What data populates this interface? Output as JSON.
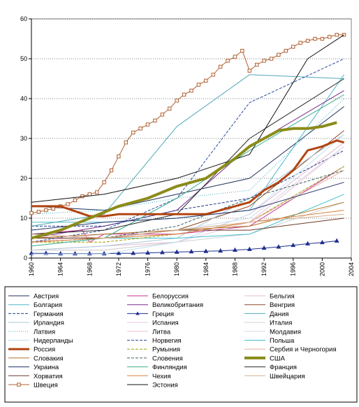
{
  "chart_data": {
    "type": "line",
    "title": "",
    "xlabel": "",
    "ylabel": "",
    "xlim": [
      1960,
      2004
    ],
    "ylim": [
      0,
      60
    ],
    "x_ticks": [
      "1960",
      "1964",
      "1968",
      "1972",
      "1976",
      "1980",
      "1984",
      "1988",
      "1992",
      "1996",
      "2000",
      "2004"
    ],
    "y_ticks": [
      "0",
      "10",
      "20",
      "30",
      "40",
      "50",
      "60"
    ],
    "grid": "horizontal",
    "legend_position": "bottom",
    "series": [
      {
        "name": "Австрия",
        "color": "#1f2f5a",
        "style": "solid",
        "width": 1,
        "x": [
          1960,
          1970,
          1980,
          1990,
          2003
        ],
        "y": [
          13,
          12,
          16,
          20,
          38
        ]
      },
      {
        "name": "Белоруссия",
        "color": "#cc3399",
        "style": "solid",
        "width": 1,
        "x": [
          1960,
          1967,
          1968,
          1970,
          1980,
          1990,
          2003
        ],
        "y": [
          6,
          7,
          4,
          6,
          6,
          8,
          23
        ]
      },
      {
        "name": "Бельгия",
        "color": "#e6b8d0",
        "style": "solid",
        "width": 1,
        "x": [
          1960,
          1970,
          1980,
          1990,
          2003
        ],
        "y": [
          2,
          3,
          4,
          11,
          29
        ]
      },
      {
        "name": "Болгария",
        "color": "#4bb8c8",
        "style": "solid",
        "width": 1,
        "x": [
          1960,
          1970,
          1980,
          1990,
          2003
        ],
        "y": [
          9,
          9,
          10,
          12,
          46
        ]
      },
      {
        "name": "Великобритания",
        "color": "#7a2a8a",
        "style": "solid",
        "width": 1,
        "x": [
          1960,
          1970,
          1980,
          1990,
          2003
        ],
        "y": [
          5,
          8,
          12,
          28,
          42
        ]
      },
      {
        "name": "Венгрия",
        "color": "#8b4a2a",
        "style": "solid",
        "width": 1,
        "x": [
          1960,
          1970,
          1980,
          1990,
          2003
        ],
        "y": [
          5,
          5,
          7,
          13,
          32
        ]
      },
      {
        "name": "Германия",
        "color": "#1f3b8a",
        "style": "dashed",
        "width": 1,
        "x": [
          1960,
          1970,
          1980,
          1990,
          2003
        ],
        "y": [
          8,
          8,
          12,
          15,
          27
        ]
      },
      {
        "name": "Греция",
        "color": "#1f2f8f",
        "style": "solid",
        "width": 1,
        "marker": "triangle",
        "x": [
          1960,
          1962,
          1964,
          1966,
          1968,
          1970,
          1972,
          1974,
          1976,
          1978,
          1980,
          1982,
          1984,
          1986,
          1988,
          1990,
          1992,
          1994,
          1996,
          1998,
          2000,
          2002
        ],
        "y": [
          1.2,
          1.2,
          1.1,
          1.1,
          1.1,
          1.1,
          1.2,
          1.2,
          1.3,
          1.4,
          1.5,
          1.6,
          1.7,
          1.8,
          2.0,
          2.2,
          2.5,
          2.8,
          3.2,
          3.6,
          3.9,
          4.3
        ]
      },
      {
        "name": "Дания",
        "color": "#4ea8b8",
        "style": "solid",
        "width": 1,
        "x": [
          1960,
          1970,
          1980,
          1990,
          2003
        ],
        "y": [
          8,
          11,
          33,
          46,
          45
        ]
      },
      {
        "name": "Ирландия",
        "color": "#a8c8d8",
        "style": "solid",
        "width": 1,
        "x": [
          1960,
          1970,
          1980,
          1990,
          2003
        ],
        "y": [
          2,
          3,
          5,
          15,
          31
        ]
      },
      {
        "name": "Испания",
        "color": "#e8c8e0",
        "style": "solid",
        "width": 1,
        "x": [
          1960,
          1970,
          1980,
          1990,
          2003
        ],
        "y": [
          2,
          2,
          4,
          9,
          23
        ]
      },
      {
        "name": "Италия",
        "color": "#d0d0d0",
        "style": "solid",
        "width": 1,
        "x": [
          1960,
          1970,
          1980,
          1990,
          2003
        ],
        "y": [
          2,
          2,
          4,
          6,
          14
        ]
      },
      {
        "name": "Латвия",
        "color": "#40b0c0",
        "style": "dotted",
        "width": 1,
        "x": [
          1960,
          1970,
          1980,
          1990,
          2003
        ],
        "y": [
          11,
          12,
          15,
          17,
          40
        ]
      },
      {
        "name": "Литва",
        "color": "#f0c0d8",
        "style": "solid",
        "width": 1,
        "x": [
          1960,
          1970,
          1980,
          1990,
          2003
        ],
        "y": [
          4,
          6,
          7,
          9,
          28
        ]
      },
      {
        "name": "Молдавия",
        "color": "#d0d8e8",
        "style": "solid",
        "width": 1,
        "x": [
          1960,
          1970,
          1980,
          1990,
          2003
        ],
        "y": [
          3,
          5,
          7,
          10,
          28
        ]
      },
      {
        "name": "Нидерланды",
        "color": "#c0e0f0",
        "style": "solid",
        "width": 1,
        "x": [
          1960,
          1970,
          1980,
          1990,
          2003
        ],
        "y": [
          1,
          1,
          4,
          11,
          31
        ]
      },
      {
        "name": "Норвегия",
        "color": "#2a4aa0",
        "style": "dashed",
        "width": 1,
        "x": [
          1960,
          1970,
          1980,
          1990,
          2003
        ],
        "y": [
          4,
          7,
          15,
          39,
          50
        ]
      },
      {
        "name": "Польша",
        "color": "#40c0d0",
        "style": "solid",
        "width": 1,
        "x": [
          1960,
          1970,
          1980,
          1990,
          2003
        ],
        "y": [
          5,
          5,
          5,
          6,
          16
        ]
      },
      {
        "name": "Россия",
        "color": "#b24410",
        "style": "solid",
        "width": 3,
        "x": [
          1960,
          1964,
          1968,
          1970,
          1972,
          1976,
          1980,
          1984,
          1988,
          1990,
          1992,
          1994,
          1996,
          1998,
          2000,
          2002,
          2003
        ],
        "y": [
          13,
          13,
          10.5,
          10.5,
          11,
          11,
          11,
          11,
          13,
          14,
          17,
          19,
          22,
          27,
          28,
          29.5,
          29
        ]
      },
      {
        "name": "Румыния",
        "color": "#a0a000",
        "style": "dashed",
        "width": 1,
        "x": [
          1960,
          1970,
          1980,
          1990,
          2003
        ],
        "y": [
          4,
          4,
          6,
          9,
          23
        ]
      },
      {
        "name": "Сербия и Черногория",
        "color": "#e0b0a0",
        "style": "solid",
        "width": 1,
        "x": [
          1960,
          1970,
          1980,
          1990,
          2003
        ],
        "y": [
          4,
          5,
          6,
          9,
          22
        ]
      },
      {
        "name": "Словакия",
        "color": "#b07020",
        "style": "solid",
        "width": 1,
        "x": [
          1960,
          1970,
          1980,
          1990,
          2003
        ],
        "y": [
          5,
          6,
          7,
          8,
          14
        ]
      },
      {
        "name": "Словения",
        "color": "#406060",
        "style": "dashed",
        "width": 1,
        "x": [
          1960,
          1970,
          1980,
          1990,
          2003
        ],
        "y": [
          4,
          5,
          8,
          15,
          22
        ]
      },
      {
        "name": "США",
        "color": "#8b8b1a",
        "style": "solid",
        "width": 4,
        "x": [
          1960,
          1964,
          1968,
          1972,
          1976,
          1980,
          1984,
          1988,
          1990,
          1992,
          1994,
          1996,
          1998,
          2000,
          2002
        ],
        "y": [
          5,
          7,
          10,
          13,
          15,
          18,
          20,
          25,
          28,
          30,
          32,
          32.5,
          32.5,
          33,
          34
        ]
      },
      {
        "name": "Украина",
        "color": "#1f2f6a",
        "style": "solid",
        "width": 1,
        "x": [
          1960,
          1970,
          1980,
          1990,
          2003
        ],
        "y": [
          7,
          9,
          10,
          12,
          19
        ]
      },
      {
        "name": "Финляндия",
        "color": "#40b090",
        "style": "solid",
        "width": 1,
        "x": [
          1960,
          1970,
          1980,
          1990,
          2003
        ],
        "y": [
          3,
          5,
          15,
          27,
          41
        ]
      },
      {
        "name": "Франция",
        "color": "#2a2a2a",
        "style": "solid",
        "width": 1,
        "x": [
          1960,
          1970,
          1980,
          1990,
          2003
        ],
        "y": [
          6,
          7,
          11,
          30,
          45
        ]
      },
      {
        "name": "Хорватия",
        "color": "#6a3a2a",
        "style": "solid",
        "width": 1,
        "x": [
          1960,
          1970,
          1980,
          1990,
          2003
        ],
        "y": [
          5,
          5,
          7,
          7,
          10
        ]
      },
      {
        "name": "Чехия",
        "color": "#d8803a",
        "style": "solid",
        "width": 1,
        "x": [
          1960,
          1970,
          1980,
          1990,
          2003
        ],
        "y": [
          4,
          5,
          6,
          9,
          12
        ]
      },
      {
        "name": "Швейцария",
        "color": "#d8b090",
        "style": "solid",
        "width": 1,
        "x": [
          1960,
          1970,
          1980,
          1990,
          2003
        ],
        "y": [
          6,
          5,
          7,
          9,
          11
        ]
      },
      {
        "name": "Швеция",
        "color": "#b06030",
        "style": "solid",
        "width": 1,
        "marker": "square",
        "x": [
          1960,
          1961,
          1962,
          1963,
          1964,
          1965,
          1966,
          1967,
          1968,
          1969,
          1970,
          1971,
          1972,
          1973,
          1974,
          1975,
          1976,
          1977,
          1978,
          1979,
          1980,
          1981,
          1982,
          1983,
          1984,
          1985,
          1986,
          1987,
          1988,
          1989,
          1990,
          1991,
          1992,
          1993,
          1994,
          1995,
          1996,
          1997,
          1998,
          1999,
          2000,
          2001,
          2002,
          2003
        ],
        "y": [
          11.3,
          11.6,
          12,
          12.4,
          13,
          13.5,
          14.5,
          15.5,
          16,
          16.5,
          19,
          22,
          25.5,
          29,
          31.5,
          32.5,
          33.5,
          34.5,
          36,
          37.5,
          39.5,
          41,
          42,
          43.5,
          44.5,
          46,
          48,
          49.5,
          50.5,
          52,
          47,
          48.5,
          49.5,
          50,
          51,
          52,
          53,
          54,
          54.5,
          55,
          55,
          55.5,
          56,
          56
        ]
      },
      {
        "name": "Эстония",
        "color": "#101010",
        "style": "solid",
        "width": 1,
        "x": [
          1960,
          1970,
          1980,
          1990,
          1998,
          2003
        ],
        "y": [
          14,
          16,
          20,
          26,
          50,
          56
        ]
      }
    ]
  }
}
